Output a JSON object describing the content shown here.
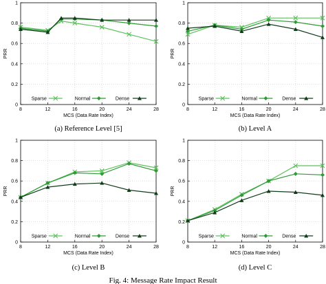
{
  "figure_caption": "Fig. 4: Message Rate Impact Result",
  "colors": {
    "sparse": "#5cc15c",
    "normal": "#2e9a35",
    "dense": "#103c1a"
  },
  "chart_data": [
    {
      "type": "line",
      "caption": "(a) Reference Level [5]",
      "xlabel": "MCS (Data Rate Index)",
      "ylabel": "PRR",
      "xlim": [
        8,
        28
      ],
      "ylim": [
        0,
        1
      ],
      "xticks": [
        "8",
        "12",
        "16",
        "20",
        "24",
        "28"
      ],
      "yticks": [
        "0",
        "0.2",
        "0.4",
        "0.6",
        "0.8",
        "1"
      ],
      "grid": true,
      "legend": "bottom-center",
      "x": [
        8,
        12,
        14,
        16,
        20,
        24,
        28
      ],
      "series": [
        {
          "name": "Sparse",
          "marker": "x",
          "values": [
            0.76,
            0.73,
            0.82,
            0.8,
            0.76,
            0.69,
            0.62
          ]
        },
        {
          "name": "Normal",
          "marker": "diamond",
          "values": [
            0.75,
            0.72,
            0.84,
            0.84,
            0.83,
            0.8,
            0.77
          ]
        },
        {
          "name": "Dense",
          "marker": "triangle",
          "values": [
            0.74,
            0.71,
            0.85,
            0.85,
            0.83,
            0.83,
            0.83
          ]
        }
      ]
    },
    {
      "type": "line",
      "caption": "(b) Level A",
      "xlabel": "MCS (Data Rate Index)",
      "ylabel": "PRR",
      "xlim": [
        8,
        28
      ],
      "ylim": [
        0,
        1
      ],
      "xticks": [
        "8",
        "12",
        "16",
        "20",
        "24",
        "28"
      ],
      "yticks": [
        "0",
        "0.2",
        "0.4",
        "0.6",
        "0.8",
        "1"
      ],
      "grid": true,
      "legend": "bottom-center",
      "x": [
        8,
        12,
        16,
        20,
        24,
        28
      ],
      "series": [
        {
          "name": "Sparse",
          "marker": "x",
          "values": [
            0.69,
            0.78,
            0.76,
            0.85,
            0.85,
            0.85
          ]
        },
        {
          "name": "Normal",
          "marker": "diamond",
          "values": [
            0.72,
            0.78,
            0.74,
            0.83,
            0.81,
            0.77
          ]
        },
        {
          "name": "Dense",
          "marker": "triangle",
          "values": [
            0.75,
            0.77,
            0.72,
            0.79,
            0.74,
            0.66
          ]
        }
      ]
    },
    {
      "type": "line",
      "caption": "(c) Level B",
      "xlabel": "MCS (Data Rate Index)",
      "ylabel": "PRR",
      "xlim": [
        8,
        28
      ],
      "ylim": [
        0,
        1
      ],
      "xticks": [
        "8",
        "12",
        "16",
        "20",
        "24",
        "28"
      ],
      "yticks": [
        "0",
        "0.2",
        "0.4",
        "0.6",
        "0.8",
        "1"
      ],
      "grid": true,
      "legend": "bottom-center",
      "x": [
        8,
        12,
        16,
        20,
        24,
        28
      ],
      "series": [
        {
          "name": "Sparse",
          "marker": "x",
          "values": [
            0.44,
            0.58,
            0.69,
            0.7,
            0.78,
            0.73
          ]
        },
        {
          "name": "Normal",
          "marker": "diamond",
          "values": [
            0.44,
            0.58,
            0.68,
            0.67,
            0.77,
            0.7
          ]
        },
        {
          "name": "Dense",
          "marker": "triangle",
          "values": [
            0.44,
            0.54,
            0.57,
            0.58,
            0.51,
            0.48
          ]
        }
      ]
    },
    {
      "type": "line",
      "caption": "(d) Level C",
      "xlabel": "MCS (Data Rate Index)",
      "ylabel": "PRR",
      "xlim": [
        8,
        28
      ],
      "ylim": [
        0,
        1
      ],
      "xticks": [
        "8",
        "12",
        "16",
        "20",
        "24",
        "28"
      ],
      "yticks": [
        "0",
        "0.2",
        "0.4",
        "0.6",
        "0.8",
        "1"
      ],
      "grid": true,
      "legend": "bottom-center",
      "x": [
        8,
        12,
        16,
        20,
        24,
        28
      ],
      "series": [
        {
          "name": "Sparse",
          "marker": "x",
          "values": [
            0.21,
            0.32,
            0.47,
            0.6,
            0.75,
            0.75
          ]
        },
        {
          "name": "Normal",
          "marker": "diamond",
          "values": [
            0.21,
            0.31,
            0.46,
            0.6,
            0.67,
            0.66
          ]
        },
        {
          "name": "Dense",
          "marker": "triangle",
          "values": [
            0.21,
            0.29,
            0.41,
            0.5,
            0.49,
            0.46
          ]
        }
      ]
    }
  ]
}
